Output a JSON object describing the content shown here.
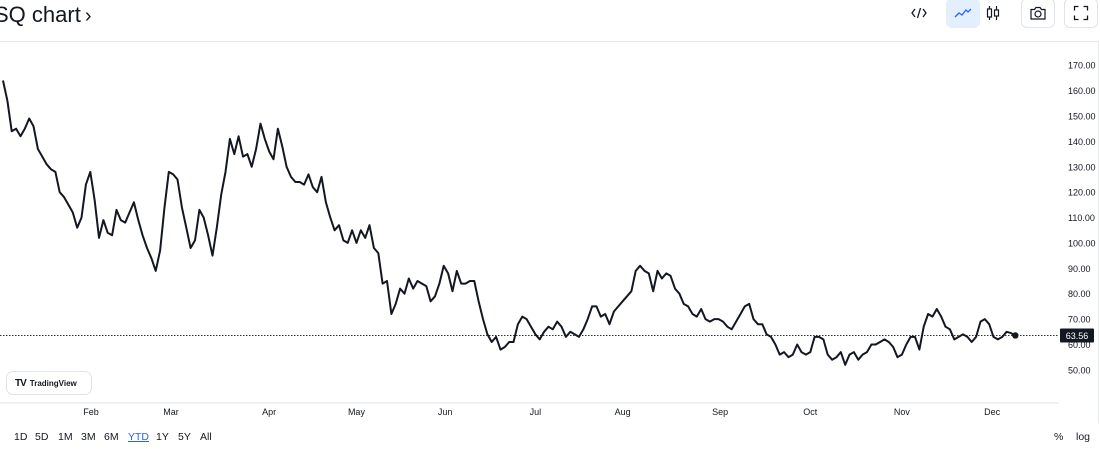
{
  "header": {
    "title": "SQ chart",
    "chevron": "›"
  },
  "toolbar": {
    "buttons": [
      {
        "name": "embed-code-icon",
        "glyph": "</>",
        "active": false,
        "boxed": false
      },
      {
        "name": "line-style-icon",
        "active": true,
        "boxed": false
      },
      {
        "name": "candles-style-icon",
        "active": false,
        "boxed": false
      },
      {
        "name": "camera-icon",
        "active": false,
        "boxed": true
      },
      {
        "name": "fullscreen-icon",
        "active": false,
        "boxed": true
      }
    ],
    "accent_color": "#2962ff"
  },
  "logo": {
    "text": "TradingView",
    "mark": "TV"
  },
  "range_bar": {
    "items": [
      "1D",
      "5D",
      "1M",
      "3M",
      "6M",
      "YTD",
      "1Y",
      "5Y",
      "All"
    ],
    "selected": "YTD"
  },
  "right_options": {
    "percent": "%",
    "log": "log"
  },
  "chart_data": {
    "type": "line",
    "series": [
      {
        "color": "#131722",
        "points": [
          [
            0.0,
            164
          ],
          [
            0.3,
            156
          ],
          [
            0.6,
            144
          ],
          [
            0.9,
            145
          ],
          [
            1.2,
            142
          ],
          [
            1.5,
            145
          ],
          [
            1.8,
            149
          ],
          [
            2.1,
            146
          ],
          [
            2.4,
            137
          ],
          [
            2.7,
            134
          ],
          [
            3.0,
            131
          ],
          [
            3.3,
            129
          ],
          [
            3.6,
            128
          ],
          [
            3.9,
            120
          ],
          [
            4.2,
            118
          ],
          [
            4.5,
            115
          ],
          [
            4.8,
            112
          ],
          [
            5.1,
            106
          ],
          [
            5.4,
            110
          ],
          [
            5.7,
            123
          ],
          [
            6.0,
            128
          ],
          [
            6.3,
            117
          ],
          [
            6.6,
            102
          ],
          [
            6.9,
            109
          ],
          [
            7.2,
            104
          ],
          [
            7.5,
            103
          ],
          [
            7.8,
            113
          ],
          [
            8.1,
            109
          ],
          [
            8.4,
            108
          ],
          [
            8.7,
            112
          ],
          [
            9.0,
            116
          ],
          [
            9.3,
            109
          ],
          [
            9.6,
            103
          ],
          [
            9.9,
            98
          ],
          [
            10.2,
            94
          ],
          [
            10.5,
            89
          ],
          [
            10.8,
            97
          ],
          [
            11.1,
            114
          ],
          [
            11.4,
            128
          ],
          [
            11.7,
            127
          ],
          [
            12.0,
            125
          ],
          [
            12.3,
            114
          ],
          [
            12.6,
            106
          ],
          [
            12.9,
            98
          ],
          [
            13.2,
            101
          ],
          [
            13.5,
            113
          ],
          [
            13.8,
            110
          ],
          [
            14.1,
            103
          ],
          [
            14.4,
            95
          ],
          [
            14.7,
            106
          ],
          [
            15.0,
            119
          ],
          [
            15.3,
            128
          ],
          [
            15.6,
            141
          ],
          [
            15.9,
            135
          ],
          [
            16.2,
            142
          ],
          [
            16.5,
            134
          ],
          [
            16.8,
            135
          ],
          [
            17.1,
            130
          ],
          [
            17.4,
            137
          ],
          [
            17.7,
            147
          ],
          [
            18.0,
            141
          ],
          [
            18.3,
            136
          ],
          [
            18.6,
            133
          ],
          [
            18.9,
            145
          ],
          [
            19.2,
            138
          ],
          [
            19.5,
            130
          ],
          [
            19.8,
            126
          ],
          [
            20.1,
            124
          ],
          [
            20.4,
            124
          ],
          [
            20.7,
            123
          ],
          [
            21.0,
            127
          ],
          [
            21.3,
            122
          ],
          [
            21.6,
            120
          ],
          [
            21.9,
            126
          ],
          [
            22.2,
            116
          ],
          [
            22.5,
            110
          ],
          [
            22.8,
            105
          ],
          [
            23.1,
            107
          ],
          [
            23.4,
            101
          ],
          [
            23.7,
            100
          ],
          [
            24.0,
            105
          ],
          [
            24.3,
            100
          ],
          [
            24.6,
            105
          ],
          [
            24.9,
            102
          ],
          [
            25.2,
            107
          ],
          [
            25.5,
            98
          ],
          [
            25.8,
            96
          ],
          [
            26.1,
            84
          ],
          [
            26.4,
            85
          ],
          [
            26.7,
            72
          ],
          [
            27.0,
            76
          ],
          [
            27.3,
            82
          ],
          [
            27.6,
            80
          ],
          [
            27.9,
            86
          ],
          [
            28.2,
            82
          ],
          [
            28.5,
            85
          ],
          [
            28.8,
            84
          ],
          [
            29.1,
            83
          ],
          [
            29.4,
            77
          ],
          [
            29.7,
            79
          ],
          [
            30.0,
            84
          ],
          [
            30.3,
            91
          ],
          [
            30.6,
            88
          ],
          [
            30.9,
            81
          ],
          [
            31.2,
            89
          ],
          [
            31.5,
            84
          ],
          [
            31.8,
            84
          ],
          [
            32.1,
            85
          ],
          [
            32.4,
            85
          ],
          [
            32.7,
            77
          ],
          [
            33.0,
            70
          ],
          [
            33.3,
            64
          ],
          [
            33.6,
            61
          ],
          [
            33.9,
            63
          ],
          [
            34.2,
            58
          ],
          [
            34.5,
            59
          ],
          [
            34.8,
            61
          ],
          [
            35.1,
            61
          ],
          [
            35.4,
            68
          ],
          [
            35.7,
            71
          ],
          [
            36.0,
            70
          ],
          [
            36.3,
            67
          ],
          [
            36.6,
            64
          ],
          [
            36.9,
            62
          ],
          [
            37.2,
            65
          ],
          [
            37.5,
            67
          ],
          [
            37.8,
            66
          ],
          [
            38.1,
            69
          ],
          [
            38.4,
            67
          ],
          [
            38.7,
            63
          ],
          [
            39.0,
            65
          ],
          [
            39.3,
            64
          ],
          [
            39.6,
            63
          ],
          [
            39.9,
            66
          ],
          [
            40.2,
            70
          ],
          [
            40.5,
            75
          ],
          [
            40.8,
            75
          ],
          [
            41.1,
            71
          ],
          [
            41.4,
            72
          ],
          [
            41.7,
            68
          ],
          [
            42.0,
            73
          ],
          [
            42.3,
            75
          ],
          [
            42.6,
            77
          ],
          [
            42.9,
            79
          ],
          [
            43.2,
            81
          ],
          [
            43.5,
            89
          ],
          [
            43.8,
            91
          ],
          [
            44.1,
            89
          ],
          [
            44.4,
            88
          ],
          [
            44.7,
            81
          ],
          [
            45.0,
            89
          ],
          [
            45.3,
            86
          ],
          [
            45.6,
            88
          ],
          [
            45.9,
            87
          ],
          [
            46.2,
            82
          ],
          [
            46.5,
            80
          ],
          [
            46.8,
            76
          ],
          [
            47.1,
            75
          ],
          [
            47.4,
            72
          ],
          [
            47.7,
            71
          ],
          [
            48.0,
            74
          ],
          [
            48.3,
            70
          ],
          [
            48.6,
            69
          ],
          [
            48.9,
            70
          ],
          [
            49.2,
            70
          ],
          [
            49.5,
            69
          ],
          [
            49.8,
            67
          ],
          [
            50.1,
            66
          ],
          [
            50.4,
            69
          ],
          [
            50.7,
            72
          ],
          [
            51.0,
            75
          ],
          [
            51.3,
            76
          ],
          [
            51.6,
            70
          ],
          [
            51.9,
            68
          ],
          [
            52.2,
            68
          ],
          [
            52.5,
            64
          ],
          [
            52.8,
            63
          ],
          [
            53.1,
            60
          ],
          [
            53.4,
            56
          ],
          [
            53.7,
            57
          ],
          [
            54.0,
            55
          ],
          [
            54.3,
            56
          ],
          [
            54.6,
            60
          ],
          [
            54.9,
            57
          ],
          [
            55.2,
            56
          ],
          [
            55.5,
            57
          ],
          [
            55.8,
            63
          ],
          [
            56.1,
            63
          ],
          [
            56.4,
            62
          ],
          [
            56.7,
            56
          ],
          [
            57.0,
            54
          ],
          [
            57.3,
            55
          ],
          [
            57.6,
            57
          ],
          [
            57.9,
            52
          ],
          [
            58.2,
            56
          ],
          [
            58.5,
            57
          ],
          [
            58.8,
            54
          ],
          [
            59.1,
            56
          ],
          [
            59.4,
            57
          ],
          [
            59.7,
            60
          ],
          [
            60.0,
            60
          ],
          [
            60.3,
            61
          ],
          [
            60.6,
            62
          ],
          [
            60.9,
            61
          ],
          [
            61.2,
            59
          ],
          [
            61.5,
            55
          ],
          [
            61.8,
            56
          ],
          [
            62.1,
            60
          ],
          [
            62.4,
            63
          ],
          [
            62.7,
            63
          ],
          [
            63.0,
            58
          ],
          [
            63.3,
            67
          ],
          [
            63.6,
            72
          ],
          [
            63.9,
            71
          ],
          [
            64.2,
            74
          ],
          [
            64.5,
            71
          ],
          [
            64.8,
            67
          ],
          [
            65.1,
            66
          ],
          [
            65.4,
            62
          ],
          [
            65.7,
            63
          ],
          [
            66.0,
            64
          ],
          [
            66.3,
            63
          ],
          [
            66.6,
            61
          ],
          [
            66.9,
            63
          ],
          [
            67.2,
            69
          ],
          [
            67.5,
            70
          ],
          [
            67.8,
            68
          ],
          [
            68.1,
            63
          ],
          [
            68.4,
            62
          ],
          [
            68.7,
            63
          ],
          [
            69.0,
            65
          ],
          [
            69.3,
            64.5
          ],
          [
            69.6,
            63.56
          ]
        ]
      }
    ],
    "xlim": [
      0,
      72.6
    ],
    "ylim": [
      40.5,
      176
    ],
    "x_ticks": [
      {
        "label": "022",
        "x": -0.7
      },
      {
        "label": "Feb",
        "x": 6.05
      },
      {
        "label": "Mar",
        "x": 11.55
      },
      {
        "label": "Apr",
        "x": 18.3
      },
      {
        "label": "May",
        "x": 24.3
      },
      {
        "label": "Jun",
        "x": 30.4
      },
      {
        "label": "Jul",
        "x": 36.6
      },
      {
        "label": "Aug",
        "x": 42.6
      },
      {
        "label": "Sep",
        "x": 49.3
      },
      {
        "label": "Oct",
        "x": 55.5
      },
      {
        "label": "Nov",
        "x": 61.8
      },
      {
        "label": "Dec",
        "x": 68.0
      }
    ],
    "y_ticks": [
      {
        "label": "50.00",
        "y": 50
      },
      {
        "label": "60.00",
        "y": 60
      },
      {
        "label": "70.00",
        "y": 70
      },
      {
        "label": "80.00",
        "y": 80
      },
      {
        "label": "90.00",
        "y": 90
      },
      {
        "label": "100.00",
        "y": 100
      },
      {
        "label": "110.00",
        "y": 110
      },
      {
        "label": "120.00",
        "y": 120
      },
      {
        "label": "130.00",
        "y": 130
      },
      {
        "label": "140.00",
        "y": 140
      },
      {
        "label": "150.00",
        "y": 150
      },
      {
        "label": "160.00",
        "y": 160
      },
      {
        "label": "170.00",
        "y": 170
      }
    ],
    "last_value": {
      "label": "63.56",
      "y": 63.56
    },
    "grid": false
  }
}
